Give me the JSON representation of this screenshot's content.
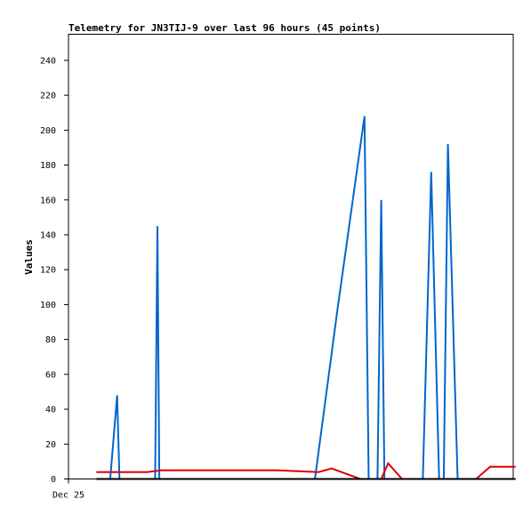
{
  "chart_data": {
    "type": "line",
    "title": "Telemetry for JN3TIJ-9 over last 96 hours (45 points)",
    "xlabel": "",
    "ylabel": "Values",
    "ylim": [
      0,
      255
    ],
    "xlim": [
      0,
      96
    ],
    "y_ticks": [
      0,
      20,
      40,
      60,
      80,
      100,
      120,
      140,
      160,
      180,
      200,
      220,
      240
    ],
    "x_ticks": [
      {
        "x": 0,
        "label": "Dec 25"
      }
    ],
    "grid": false,
    "series": [
      {
        "color": "#0066cc",
        "points": [
          [
            9.0,
            0
          ],
          [
            10.5,
            48
          ],
          [
            11.0,
            0
          ],
          [
            18.7,
            0
          ],
          [
            19.2,
            145
          ],
          [
            19.6,
            0
          ],
          [
            53.2,
            0
          ],
          [
            58.0,
            96
          ],
          [
            63.9,
            208
          ],
          [
            64.8,
            0
          ],
          [
            66.7,
            0
          ],
          [
            67.5,
            160
          ],
          [
            68.2,
            0
          ],
          [
            76.5,
            0
          ],
          [
            78.3,
            176
          ],
          [
            80.0,
            0
          ],
          [
            81.0,
            0
          ],
          [
            81.9,
            192
          ],
          [
            84.0,
            0
          ]
        ]
      },
      {
        "color": "#dd0000",
        "points": [
          [
            6.0,
            4
          ],
          [
            17.0,
            4
          ],
          [
            20.0,
            5
          ],
          [
            45.0,
            5
          ],
          [
            54.0,
            4
          ],
          [
            56.8,
            6
          ],
          [
            63.0,
            0
          ],
          [
            67.5,
            0
          ],
          [
            69.0,
            9
          ],
          [
            72.0,
            0
          ],
          [
            88.0,
            0
          ],
          [
            91.0,
            7
          ],
          [
            96.5,
            7
          ]
        ]
      },
      {
        "color": "#000000",
        "points": [
          [
            6.0,
            0
          ],
          [
            96.5,
            0
          ]
        ]
      }
    ]
  }
}
